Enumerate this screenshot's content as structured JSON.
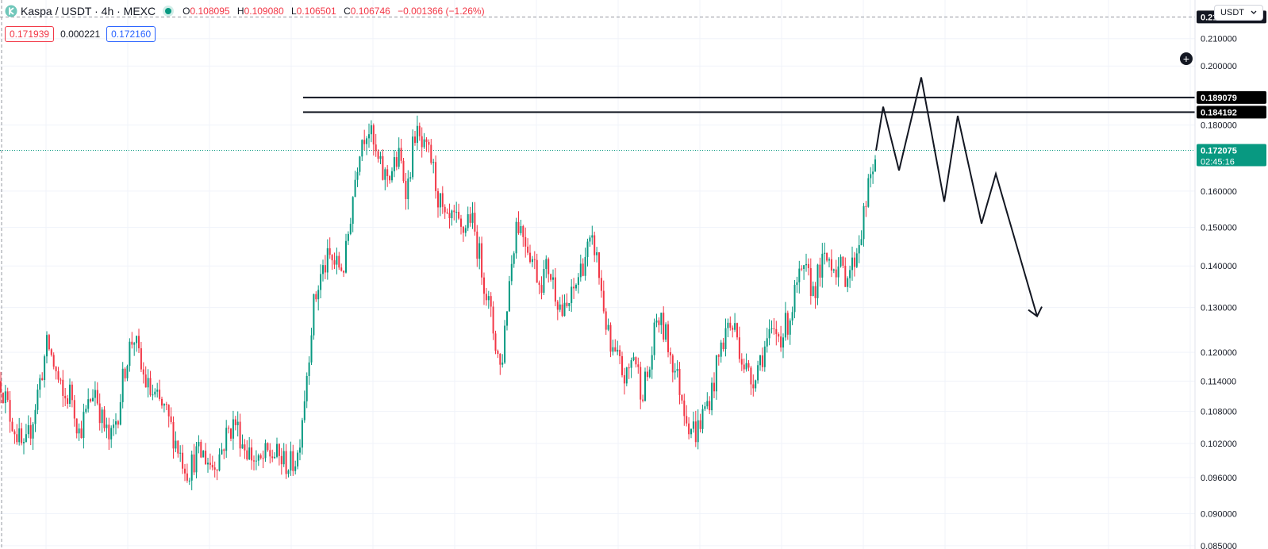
{
  "header": {
    "symbol": "Kaspa / USDT · 4h · MEXC",
    "open_label": "O",
    "open": "0.108095",
    "high_label": "H",
    "high": "0.109080",
    "low_label": "L",
    "low": "0.106501",
    "close_label": "C",
    "close": "0.106746",
    "change": "−0.001366 (−1.26%)",
    "sell_price": "0.171939",
    "spread": "0.000221",
    "buy_price": "0.172160",
    "currency": "USDT",
    "currency_chevron": "chevron-down-icon"
  },
  "colors": {
    "up": "#089981",
    "down": "#f23645",
    "dark": "#131722",
    "grid": "#f0f3fa"
  },
  "chart_data": {
    "type": "candlestick",
    "y_scale": "log",
    "ylim": [
      0.0845,
      0.225
    ],
    "price_ticks": [
      "0.210000",
      "0.200000",
      "0.180000",
      "0.160000",
      "0.150000",
      "0.140000",
      "0.130000",
      "0.120000",
      "0.114000",
      "0.108000",
      "0.102000",
      "0.096000",
      "0.090000",
      "0.085000"
    ],
    "price_labels": {
      "top_line": "0.218278",
      "resistance_1": "0.189079",
      "resistance_2": "0.184192",
      "last_price": "0.172075",
      "countdown": "02:45:16"
    },
    "horizontal_lines": [
      0.189079,
      0.184192
    ],
    "close_path": [
      0.114,
      0.108,
      0.104,
      0.1,
      0.106,
      0.114,
      0.122,
      0.116,
      0.11,
      0.112,
      0.104,
      0.108,
      0.113,
      0.106,
      0.102,
      0.108,
      0.118,
      0.124,
      0.116,
      0.112,
      0.11,
      0.108,
      0.104,
      0.1,
      0.097,
      0.1,
      0.1,
      0.098,
      0.1,
      0.104,
      0.106,
      0.102,
      0.1,
      0.098,
      0.1,
      0.1,
      0.099,
      0.098,
      0.1,
      0.113,
      0.13,
      0.138,
      0.142,
      0.14,
      0.14,
      0.158,
      0.175,
      0.18,
      0.17,
      0.164,
      0.166,
      0.17,
      0.16,
      0.178,
      0.172,
      0.17,
      0.158,
      0.15,
      0.152,
      0.148,
      0.154,
      0.145,
      0.135,
      0.125,
      0.116,
      0.135,
      0.152,
      0.148,
      0.142,
      0.136,
      0.14,
      0.134,
      0.128,
      0.132,
      0.138,
      0.144,
      0.145,
      0.132,
      0.12,
      0.118,
      0.114,
      0.12,
      0.112,
      0.116,
      0.128,
      0.124,
      0.118,
      0.112,
      0.106,
      0.104,
      0.108,
      0.112,
      0.12,
      0.126,
      0.125,
      0.118,
      0.114,
      0.118,
      0.122,
      0.124,
      0.124,
      0.128,
      0.136,
      0.138,
      0.134,
      0.14,
      0.142,
      0.14,
      0.138,
      0.14,
      0.148,
      0.16,
      0.172
    ],
    "projection": [
      [
        1104,
        0.172
      ],
      [
        1113,
        0.186
      ],
      [
        1133,
        0.166
      ],
      [
        1161,
        0.196
      ],
      [
        1190,
        0.157
      ],
      [
        1207,
        0.183
      ],
      [
        1237,
        0.151
      ],
      [
        1255,
        0.165
      ],
      [
        1307,
        0.128
      ]
    ]
  }
}
